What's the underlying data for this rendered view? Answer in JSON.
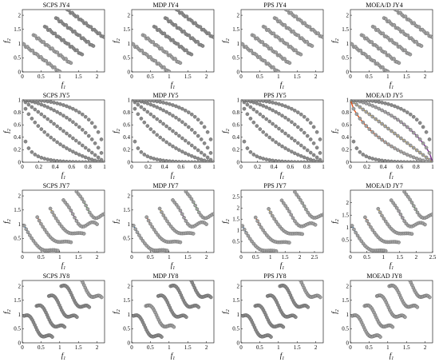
{
  "colors": {
    "pareto_front": "#8a8a8a",
    "series": [
      "#1f77b4",
      "#e8541a",
      "#e6b422",
      "#7b2d8e",
      "#3aa635",
      "#4fc3e8"
    ]
  },
  "chart_data": [
    {
      "type": "scatter",
      "title": "SCPS JY4",
      "xlabel": "f1",
      "ylabel": "f2",
      "xlim": [
        0,
        2.2
      ],
      "ylim": [
        0,
        2.2
      ],
      "xticks": [
        "0",
        "0.5",
        "1",
        "1.5",
        "2"
      ],
      "yticks": [
        "0",
        "0.5",
        "1",
        "1.5",
        "2"
      ],
      "problem": "JY4",
      "highlight_series": [
        0,
        1
      ]
    },
    {
      "type": "scatter",
      "title": "MDP JY4",
      "xlabel": "f1",
      "ylabel": "f2",
      "xlim": [
        0,
        2.2
      ],
      "ylim": [
        0,
        2.2
      ],
      "xticks": [
        "0",
        "0.5",
        "1",
        "1.5",
        "2"
      ],
      "yticks": [
        "0",
        "0.5",
        "1",
        "1.5",
        "2"
      ],
      "problem": "JY4",
      "highlight_series": [
        0,
        1
      ]
    },
    {
      "type": "scatter",
      "title": "PPS JY4",
      "xlabel": "f1",
      "ylabel": "f2",
      "xlim": [
        0,
        2.2
      ],
      "ylim": [
        0,
        2.2
      ],
      "xticks": [
        "0",
        "0.5",
        "1",
        "1.5",
        "2"
      ],
      "yticks": [
        "0",
        "0.5",
        "1",
        "1.5",
        "2"
      ],
      "problem": "JY4",
      "highlight_series": [
        0,
        1,
        2,
        3,
        4
      ]
    },
    {
      "type": "scatter",
      "title": "MOEA/D JY4",
      "xlabel": "f1",
      "ylabel": "f2",
      "xlim": [
        0,
        2.2
      ],
      "ylim": [
        0,
        2.2
      ],
      "xticks": [
        "0",
        "0.5",
        "1",
        "1.5",
        "2"
      ],
      "yticks": [
        "0",
        "0.5",
        "1",
        "1.5",
        "2"
      ],
      "problem": "JY4",
      "highlight_series": [
        0,
        1,
        2,
        3,
        4
      ]
    },
    {
      "type": "scatter",
      "title": "SCPS JY5",
      "xlabel": "f1",
      "ylabel": "f2",
      "xlim": [
        0,
        1
      ],
      "ylim": [
        0,
        1
      ],
      "xticks": [
        "0",
        "0.2",
        "0.4",
        "0.6",
        "0.8",
        "1"
      ],
      "yticks": [
        "0",
        "0.2",
        "0.4",
        "0.6",
        "0.8",
        "1"
      ],
      "problem": "JY5",
      "highlight_series": []
    },
    {
      "type": "scatter",
      "title": "MDP JY5",
      "xlabel": "f1",
      "ylabel": "f2",
      "xlim": [
        0,
        1
      ],
      "ylim": [
        0,
        1
      ],
      "xticks": [
        "0",
        "0.2",
        "0.4",
        "0.6",
        "0.8",
        "1"
      ],
      "yticks": [
        "0",
        "0.2",
        "0.4",
        "0.6",
        "0.8",
        "1"
      ],
      "problem": "JY5",
      "highlight_series": []
    },
    {
      "type": "scatter",
      "title": "PPS JY5",
      "xlabel": "f1",
      "ylabel": "f2",
      "xlim": [
        0,
        1
      ],
      "ylim": [
        0,
        1
      ],
      "xticks": [
        "0",
        "0.2",
        "0.4",
        "0.6",
        "0.8",
        "1"
      ],
      "yticks": [
        "0",
        "0.2",
        "0.4",
        "0.6",
        "0.8",
        "1"
      ],
      "problem": "JY5",
      "highlight_series": []
    },
    {
      "type": "scatter",
      "title": "MOEA/D JY5",
      "xlabel": "f1",
      "ylabel": "f2",
      "xlim": [
        0,
        1
      ],
      "ylim": [
        0,
        1
      ],
      "xticks": [
        "0",
        "0.2",
        "0.4",
        "0.6",
        "0.8",
        "1"
      ],
      "yticks": [
        "0",
        "0.2",
        "0.4",
        "0.6",
        "0.8",
        "1"
      ],
      "problem": "JY5",
      "highlight_series": [
        1,
        2,
        3
      ]
    },
    {
      "type": "scatter",
      "title": "SCPS JY7",
      "xlabel": "f1",
      "ylabel": "f2",
      "xlim": [
        0,
        2.2
      ],
      "ylim": [
        0,
        2.2
      ],
      "xticks": [
        "0",
        "0.5",
        "1",
        "1.5",
        "2"
      ],
      "yticks": [
        "0.5",
        "1",
        "1.5",
        "2"
      ],
      "problem": "JY7",
      "highlight_series": [
        0,
        1,
        2,
        3,
        4
      ]
    },
    {
      "type": "scatter",
      "title": "MDP JY7",
      "xlabel": "f1",
      "ylabel": "f2",
      "xlim": [
        0,
        2.2
      ],
      "ylim": [
        0,
        2.2
      ],
      "xticks": [
        "0",
        "0.5",
        "1",
        "1.5",
        "2"
      ],
      "yticks": [
        "0.5",
        "1",
        "1.5",
        "2"
      ],
      "problem": "JY7",
      "highlight_series": [
        0,
        1,
        2,
        3,
        4
      ]
    },
    {
      "type": "scatter",
      "title": "PPS JY7",
      "xlabel": "f1",
      "ylabel": "f2",
      "xlim": [
        0,
        2.8
      ],
      "ylim": [
        0,
        2.8
      ],
      "xticks": [
        "0",
        "0.5",
        "1",
        "1.5",
        "2",
        "2.5"
      ],
      "yticks": [
        "0.5",
        "1",
        "1.5",
        "2",
        "2.5"
      ],
      "problem": "JY7",
      "highlight_series": [
        0,
        1,
        2,
        3,
        4
      ]
    },
    {
      "type": "scatter",
      "title": "MOEA/D JY7",
      "xlabel": "f1",
      "ylabel": "f2",
      "xlim": [
        0,
        2.5
      ],
      "ylim": [
        0,
        2.5
      ],
      "xticks": [
        "0",
        "0.5",
        "1",
        "1.5",
        "2",
        "2.5"
      ],
      "yticks": [
        "0.5",
        "1",
        "1.5",
        "2"
      ],
      "problem": "JY7",
      "highlight_series": [
        0,
        1,
        2,
        3,
        4
      ]
    },
    {
      "type": "scatter",
      "title": "SCPS JY8",
      "xlabel": "f1",
      "ylabel": "f2",
      "xlim": [
        0,
        2.2
      ],
      "ylim": [
        0,
        2.2
      ],
      "xticks": [
        "0",
        "0.5",
        "1",
        "1.5",
        "2"
      ],
      "yticks": [
        "0",
        "0.5",
        "1",
        "1.5",
        "2"
      ],
      "problem": "JY8",
      "highlight_series": [
        4
      ]
    },
    {
      "type": "scatter",
      "title": "MDP JY8",
      "xlabel": "f1",
      "ylabel": "f2",
      "xlim": [
        0,
        2.2
      ],
      "ylim": [
        0,
        2.2
      ],
      "xticks": [
        "0",
        "0.5",
        "1",
        "1.5",
        "2"
      ],
      "yticks": [
        "0",
        "0.5",
        "1",
        "1.5",
        "2"
      ],
      "problem": "JY8",
      "highlight_series": [
        1
      ]
    },
    {
      "type": "scatter",
      "title": "PPS JY8",
      "xlabel": "f1",
      "ylabel": "f2",
      "xlim": [
        0,
        2.2
      ],
      "ylim": [
        0,
        2.2
      ],
      "xticks": [
        "0",
        "0.5",
        "1",
        "1.5",
        "2"
      ],
      "yticks": [
        "0",
        "0.5",
        "1",
        "1.5",
        "2"
      ],
      "problem": "JY8",
      "highlight_series": [
        4
      ]
    },
    {
      "type": "scatter",
      "title": "MOEAD JY8",
      "xlabel": "f1",
      "ylabel": "f2",
      "xlim": [
        0,
        2.2
      ],
      "ylim": [
        0,
        2.2
      ],
      "xticks": [
        "0",
        "0.5",
        "1",
        "1.5",
        "2"
      ],
      "yticks": [
        "0",
        "0.5",
        "1",
        "1.5",
        "2"
      ],
      "problem": "JY8",
      "highlight_series": [
        0,
        1,
        2,
        3,
        4,
        5
      ]
    }
  ]
}
